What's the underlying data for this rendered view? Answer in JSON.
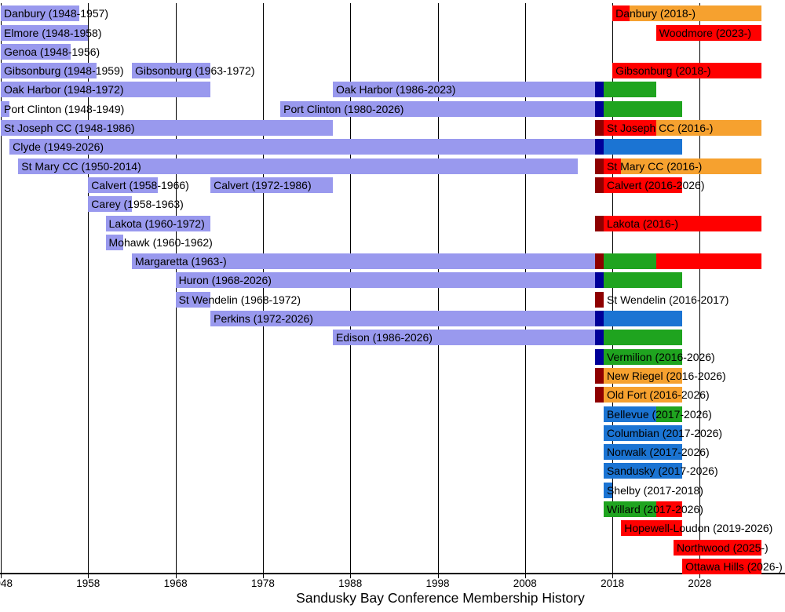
{
  "colors": {
    "original": "#9999EE",
    "navy": "#000099",
    "maroon": "#8E0000",
    "red": "#FF0000",
    "orange": "#F6A12F",
    "green": "#1FA41F",
    "blue": "#1B74D3"
  },
  "chart_data": {
    "type": "bar",
    "subtype": "gantt-timeline",
    "title": "Sandusky Bay Conference Membership History",
    "xlabel": "",
    "ylabel": "",
    "x_range": [
      1948,
      2035
    ],
    "x_ticks": [
      1948,
      1958,
      1968,
      1978,
      1988,
      1998,
      2008,
      2018,
      2028
    ],
    "grid": true,
    "legend": false,
    "rows": [
      {
        "name": "Danbury",
        "bars": [
          {
            "label": "Danbury (1948-1957)",
            "label_anchor": 1948,
            "segments": [
              {
                "start": 1948,
                "end": 1957,
                "color": "original"
              }
            ]
          },
          {
            "label": "Danbury (2018-)",
            "label_anchor": 2018,
            "segments": [
              {
                "start": 2018,
                "end": 2020,
                "color": "red"
              },
              {
                "start": 2020,
                "end": null,
                "color": "orange"
              }
            ]
          }
        ]
      },
      {
        "name": "Elmore Woodmore",
        "bars": [
          {
            "label": "Elmore (1948-1958)",
            "label_anchor": 1948,
            "segments": [
              {
                "start": 1948,
                "end": 1958,
                "color": "original"
              }
            ]
          },
          {
            "label": "Woodmore (2023-)",
            "label_anchor": 2023,
            "segments": [
              {
                "start": 2023,
                "end": null,
                "color": "red"
              }
            ]
          }
        ]
      },
      {
        "name": "Genoa",
        "bars": [
          {
            "label": "Genoa (1948-1956)",
            "label_anchor": 1948,
            "segments": [
              {
                "start": 1948,
                "end": 1956,
                "color": "original"
              }
            ]
          }
        ]
      },
      {
        "name": "Gibsonburg",
        "bars": [
          {
            "label": "Gibsonburg (1948-1959)",
            "label_anchor": 1948,
            "segments": [
              {
                "start": 1948,
                "end": 1959,
                "color": "original"
              }
            ]
          },
          {
            "label": "Gibsonburg (1963-1972)",
            "label_anchor": 1963,
            "segments": [
              {
                "start": 1963,
                "end": 1972,
                "color": "original"
              }
            ]
          },
          {
            "label": "Gibsonburg (2018-)",
            "label_anchor": 2018,
            "segments": [
              {
                "start": 2018,
                "end": null,
                "color": "red"
              }
            ]
          }
        ]
      },
      {
        "name": "Oak Harbor",
        "bars": [
          {
            "label": "Oak Harbor (1948-1972)",
            "label_anchor": 1948,
            "segments": [
              {
                "start": 1948,
                "end": 1972,
                "color": "original"
              }
            ]
          },
          {
            "label": "Oak Harbor (1986-2023)",
            "label_anchor": 1986,
            "segments": [
              {
                "start": 1986,
                "end": 2016,
                "color": "original"
              },
              {
                "start": 2016,
                "end": 2017,
                "color": "navy"
              },
              {
                "start": 2017,
                "end": 2023,
                "color": "green"
              }
            ]
          }
        ]
      },
      {
        "name": "Port Clinton",
        "bars": [
          {
            "label": "Port Clinton (1948-1949)",
            "label_anchor": 1948,
            "segments": [
              {
                "start": 1948,
                "end": 1949,
                "color": "original"
              }
            ]
          },
          {
            "label": "Port Clinton (1980-2026)",
            "label_anchor": 1980,
            "segments": [
              {
                "start": 1980,
                "end": 2016,
                "color": "original"
              },
              {
                "start": 2016,
                "end": 2017,
                "color": "navy"
              },
              {
                "start": 2017,
                "end": 2026,
                "color": "green"
              }
            ]
          }
        ]
      },
      {
        "name": "St Joseph CC",
        "bars": [
          {
            "label": "St Joseph CC (1948-1986)",
            "label_anchor": 1948,
            "segments": [
              {
                "start": 1948,
                "end": 1986,
                "color": "original"
              }
            ]
          },
          {
            "label": "St Joseph CC (2016-)",
            "label_anchor": 2017,
            "segments": [
              {
                "start": 2016,
                "end": 2017,
                "color": "maroon"
              },
              {
                "start": 2017,
                "end": 2023,
                "color": "red"
              },
              {
                "start": 2023,
                "end": null,
                "color": "orange"
              }
            ]
          }
        ]
      },
      {
        "name": "Clyde",
        "bars": [
          {
            "label": "Clyde (1949-2026)",
            "label_anchor": 1949,
            "segments": [
              {
                "start": 1949,
                "end": 2016,
                "color": "original"
              },
              {
                "start": 2016,
                "end": 2017,
                "color": "navy"
              },
              {
                "start": 2017,
                "end": 2026,
                "color": "blue"
              }
            ]
          }
        ]
      },
      {
        "name": "St Mary CC",
        "bars": [
          {
            "label": "St Mary CC (1950-2014)",
            "label_anchor": 1950,
            "segments": [
              {
                "start": 1950,
                "end": 2014,
                "color": "original"
              }
            ]
          },
          {
            "label": "St Mary CC (2016-)",
            "label_anchor": 2017,
            "segments": [
              {
                "start": 2016,
                "end": 2017,
                "color": "maroon"
              },
              {
                "start": 2017,
                "end": 2019,
                "color": "red"
              },
              {
                "start": 2019,
                "end": null,
                "color": "orange"
              }
            ]
          }
        ]
      },
      {
        "name": "Calvert",
        "bars": [
          {
            "label": "Calvert (1958-1966)",
            "label_anchor": 1958,
            "segments": [
              {
                "start": 1958,
                "end": 1966,
                "color": "original"
              }
            ]
          },
          {
            "label": "Calvert (1972-1986)",
            "label_anchor": 1972,
            "segments": [
              {
                "start": 1972,
                "end": 1986,
                "color": "original"
              }
            ]
          },
          {
            "label": "Calvert (2016-2026)",
            "label_anchor": 2017,
            "segments": [
              {
                "start": 2016,
                "end": 2017,
                "color": "maroon"
              },
              {
                "start": 2017,
                "end": 2026,
                "color": "red"
              }
            ]
          }
        ]
      },
      {
        "name": "Carey",
        "bars": [
          {
            "label": "Carey (1958-1963)",
            "label_anchor": 1958,
            "segments": [
              {
                "start": 1958,
                "end": 1963,
                "color": "original"
              }
            ]
          }
        ]
      },
      {
        "name": "Lakota",
        "bars": [
          {
            "label": "Lakota (1960-1972)",
            "label_anchor": 1960,
            "segments": [
              {
                "start": 1960,
                "end": 1972,
                "color": "original"
              }
            ]
          },
          {
            "label": "Lakota (2016-)",
            "label_anchor": 2017,
            "segments": [
              {
                "start": 2016,
                "end": 2017,
                "color": "maroon"
              },
              {
                "start": 2017,
                "end": null,
                "color": "red"
              }
            ]
          }
        ]
      },
      {
        "name": "Mohawk",
        "bars": [
          {
            "label": "Mohawk (1960-1962)",
            "label_anchor": 1960,
            "segments": [
              {
                "start": 1960,
                "end": 1962,
                "color": "original"
              }
            ]
          }
        ]
      },
      {
        "name": "Margaretta",
        "bars": [
          {
            "label": "Margaretta (1963-)",
            "label_anchor": 1963,
            "segments": [
              {
                "start": 1963,
                "end": 2016,
                "color": "original"
              },
              {
                "start": 2016,
                "end": 2017,
                "color": "maroon"
              },
              {
                "start": 2017,
                "end": 2023,
                "color": "green"
              },
              {
                "start": 2023,
                "end": null,
                "color": "red"
              }
            ]
          }
        ]
      },
      {
        "name": "Huron",
        "bars": [
          {
            "label": "Huron (1968-2026)",
            "label_anchor": 1968,
            "segments": [
              {
                "start": 1968,
                "end": 2016,
                "color": "original"
              },
              {
                "start": 2016,
                "end": 2017,
                "color": "navy"
              },
              {
                "start": 2017,
                "end": 2026,
                "color": "green"
              }
            ]
          }
        ]
      },
      {
        "name": "St Wendelin",
        "bars": [
          {
            "label": "St Wendelin (1968-1972)",
            "label_anchor": 1968,
            "segments": [
              {
                "start": 1968,
                "end": 1972,
                "color": "original"
              }
            ]
          },
          {
            "label": "St Wendelin (2016-2017)",
            "label_anchor": 2017,
            "segments": [
              {
                "start": 2016,
                "end": 2017,
                "color": "maroon"
              }
            ]
          }
        ]
      },
      {
        "name": "Perkins",
        "bars": [
          {
            "label": "Perkins (1972-2026)",
            "label_anchor": 1972,
            "segments": [
              {
                "start": 1972,
                "end": 2016,
                "color": "original"
              },
              {
                "start": 2016,
                "end": 2017,
                "color": "navy"
              },
              {
                "start": 2017,
                "end": 2026,
                "color": "blue"
              }
            ]
          }
        ]
      },
      {
        "name": "Edison",
        "bars": [
          {
            "label": "Edison (1986-2026)",
            "label_anchor": 1986,
            "segments": [
              {
                "start": 1986,
                "end": 2016,
                "color": "original"
              },
              {
                "start": 2016,
                "end": 2017,
                "color": "navy"
              },
              {
                "start": 2017,
                "end": 2026,
                "color": "green"
              }
            ]
          }
        ]
      },
      {
        "name": "Vermilion",
        "bars": [
          {
            "label": "Vermilion (2016-2026)",
            "label_anchor": 2017,
            "segments": [
              {
                "start": 2016,
                "end": 2017,
                "color": "navy"
              },
              {
                "start": 2017,
                "end": 2026,
                "color": "green"
              }
            ]
          }
        ]
      },
      {
        "name": "New Riegel",
        "bars": [
          {
            "label": "New Riegel (2016-2026)",
            "label_anchor": 2017,
            "segments": [
              {
                "start": 2016,
                "end": 2017,
                "color": "maroon"
              },
              {
                "start": 2017,
                "end": 2026,
                "color": "orange"
              }
            ]
          }
        ]
      },
      {
        "name": "Old Fort",
        "bars": [
          {
            "label": "Old Fort (2016-2026)",
            "label_anchor": 2017,
            "segments": [
              {
                "start": 2016,
                "end": 2017,
                "color": "maroon"
              },
              {
                "start": 2017,
                "end": 2026,
                "color": "orange"
              }
            ]
          }
        ]
      },
      {
        "name": "Bellevue",
        "bars": [
          {
            "label": "Bellevue (2017-2026)",
            "label_anchor": 2017,
            "segments": [
              {
                "start": 2017,
                "end": 2023,
                "color": "blue"
              },
              {
                "start": 2023,
                "end": 2026,
                "color": "green"
              }
            ]
          }
        ]
      },
      {
        "name": "Columbian",
        "bars": [
          {
            "label": "Columbian (2017-2026)",
            "label_anchor": 2017,
            "segments": [
              {
                "start": 2017,
                "end": 2026,
                "color": "blue"
              }
            ]
          }
        ]
      },
      {
        "name": "Norwalk",
        "bars": [
          {
            "label": "Norwalk (2017-2026)",
            "label_anchor": 2017,
            "segments": [
              {
                "start": 2017,
                "end": 2026,
                "color": "blue"
              }
            ]
          }
        ]
      },
      {
        "name": "Sandusky",
        "bars": [
          {
            "label": "Sandusky (2017-2026)",
            "label_anchor": 2017,
            "segments": [
              {
                "start": 2017,
                "end": 2026,
                "color": "blue"
              }
            ]
          }
        ]
      },
      {
        "name": "Shelby",
        "bars": [
          {
            "label": "Shelby (2017-2018)",
            "label_anchor": 2017,
            "segments": [
              {
                "start": 2017,
                "end": 2018,
                "color": "blue"
              }
            ]
          }
        ]
      },
      {
        "name": "Willard",
        "bars": [
          {
            "label": "Willard (2017-2026)",
            "label_anchor": 2017,
            "segments": [
              {
                "start": 2017,
                "end": 2023,
                "color": "green"
              },
              {
                "start": 2023,
                "end": 2026,
                "color": "red"
              }
            ]
          }
        ]
      },
      {
        "name": "Hopewell-Loudon",
        "bars": [
          {
            "label": "Hopewell-Loudon (2019-2026)",
            "label_anchor": 2019,
            "segments": [
              {
                "start": 2019,
                "end": 2026,
                "color": "red"
              }
            ]
          }
        ]
      },
      {
        "name": "Northwood",
        "bars": [
          {
            "label": "Northwood (2025-)",
            "label_anchor": 2025,
            "segments": [
              {
                "start": 2025,
                "end": null,
                "color": "red"
              }
            ]
          }
        ]
      },
      {
        "name": "Ottawa Hills",
        "bars": [
          {
            "label": "Ottawa Hills (2026-)",
            "label_anchor": 2026,
            "segments": [
              {
                "start": 2026,
                "end": null,
                "color": "red"
              }
            ]
          }
        ]
      }
    ]
  }
}
